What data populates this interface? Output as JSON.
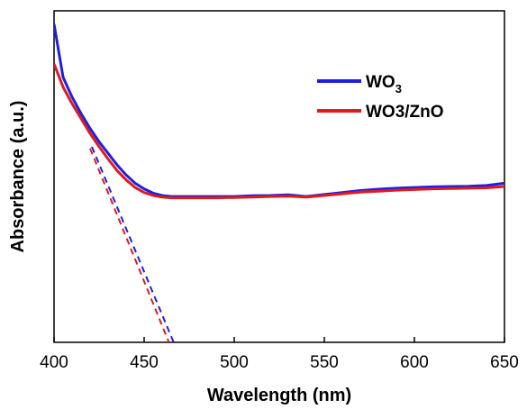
{
  "chart_data": {
    "type": "line",
    "title": "",
    "xlabel": "Wavelength (nm)",
    "ylabel": "Absorbance (a.u.)",
    "xlim": [
      400,
      650
    ],
    "ylim": [
      0,
      1.0
    ],
    "x_ticks": [
      400,
      450,
      500,
      550,
      600,
      650
    ],
    "x_tick_labels": [
      "400",
      "450",
      "500",
      "550",
      "600",
      "650"
    ],
    "y_ticks_shown": false,
    "grid": false,
    "legend_position": "top-right",
    "series": [
      {
        "name": "WO3",
        "legend_main": "WO",
        "legend_sub": "3",
        "color": "#1f1fe0",
        "x": [
          400,
          405,
          410,
          415,
          420,
          425,
          430,
          435,
          440,
          445,
          450,
          455,
          460,
          465,
          470,
          480,
          490,
          500,
          510,
          520,
          530,
          540,
          550,
          560,
          570,
          580,
          590,
          600,
          610,
          620,
          630,
          640,
          650
        ],
        "y": [
          0.96,
          0.8,
          0.74,
          0.69,
          0.645,
          0.605,
          0.57,
          0.535,
          0.505,
          0.48,
          0.463,
          0.45,
          0.443,
          0.44,
          0.44,
          0.44,
          0.44,
          0.44,
          0.442,
          0.443,
          0.445,
          0.44,
          0.446,
          0.452,
          0.458,
          0.462,
          0.465,
          0.467,
          0.469,
          0.47,
          0.471,
          0.473,
          0.48
        ]
      },
      {
        "name": "WO3/ZnO",
        "legend_main": "WO3/ZnO",
        "legend_sub": "",
        "color": "#e01b1b",
        "x": [
          400,
          405,
          410,
          415,
          420,
          425,
          430,
          435,
          440,
          445,
          450,
          455,
          460,
          465,
          470,
          480,
          490,
          500,
          510,
          520,
          530,
          540,
          550,
          560,
          570,
          580,
          590,
          600,
          610,
          620,
          630,
          640,
          650
        ],
        "y": [
          0.84,
          0.77,
          0.72,
          0.675,
          0.63,
          0.59,
          0.553,
          0.518,
          0.49,
          0.467,
          0.452,
          0.443,
          0.438,
          0.436,
          0.436,
          0.436,
          0.436,
          0.437,
          0.438,
          0.44,
          0.441,
          0.438,
          0.443,
          0.448,
          0.453,
          0.456,
          0.459,
          0.461,
          0.463,
          0.464,
          0.465,
          0.466,
          0.47
        ]
      }
    ],
    "tangent_lines": [
      {
        "series": "WO3",
        "color": "#1f1fe0",
        "x": [
          421,
          471
        ],
        "y": [
          0.59,
          -0.06
        ]
      },
      {
        "series": "WO3/ZnO",
        "color": "#e01b1b",
        "x": [
          420,
          466
        ],
        "y": [
          0.585,
          -0.03
        ]
      }
    ]
  }
}
